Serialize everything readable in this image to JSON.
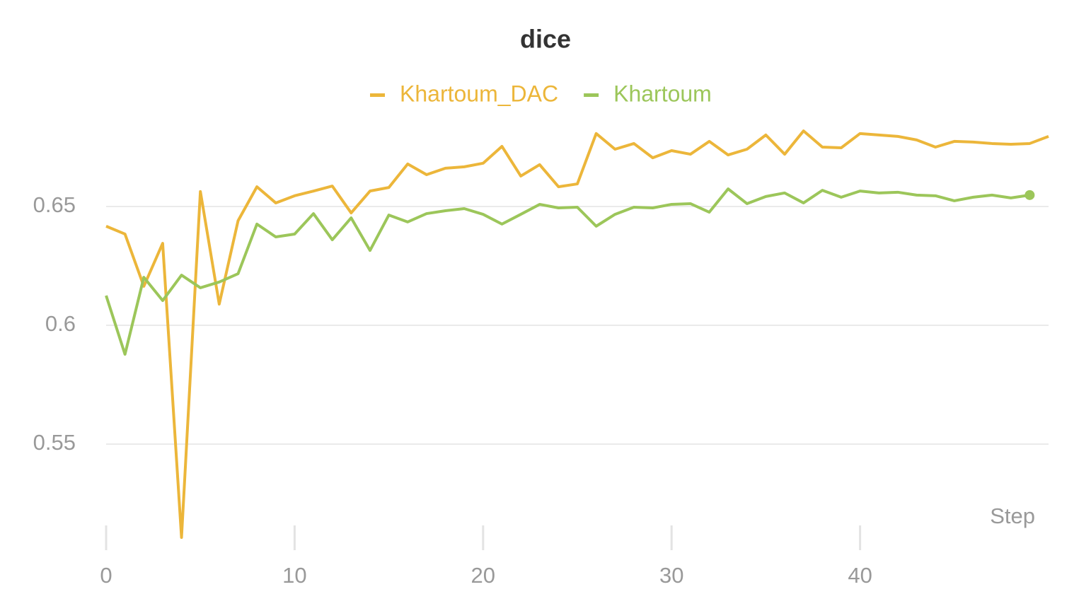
{
  "chart_data": {
    "type": "line",
    "title": "dice",
    "xlabel": "Step",
    "x": [
      0,
      1,
      2,
      3,
      4,
      5,
      6,
      7,
      8,
      9,
      10,
      11,
      12,
      13,
      14,
      15,
      16,
      17,
      18,
      19,
      20,
      21,
      22,
      23,
      24,
      25,
      26,
      27,
      28,
      29,
      30,
      31,
      32,
      33,
      34,
      35,
      36,
      37,
      38,
      39,
      40,
      41,
      42,
      43,
      44,
      45,
      46,
      47,
      48,
      49,
      50
    ],
    "series": [
      {
        "name": "Khartoum_DAC",
        "color": "#ecb63a",
        "values": [
          0.6417,
          0.6384,
          0.6164,
          0.6345,
          0.5107,
          0.6563,
          0.6089,
          0.644,
          0.6583,
          0.6515,
          0.6545,
          0.6565,
          0.6586,
          0.6473,
          0.6565,
          0.658,
          0.6679,
          0.6634,
          0.6661,
          0.6667,
          0.6682,
          0.6753,
          0.6628,
          0.6676,
          0.6583,
          0.6595,
          0.6807,
          0.6741,
          0.6765,
          0.6705,
          0.6735,
          0.672,
          0.6774,
          0.6717,
          0.6741,
          0.6801,
          0.672,
          0.6818,
          0.675,
          0.6747,
          0.6807,
          0.6801,
          0.6795,
          0.678,
          0.675,
          0.6774,
          0.6771,
          0.6765,
          0.6762,
          0.6765,
          0.6795
        ]
      },
      {
        "name": "Khartoum",
        "color": "#9cc65a",
        "values": [
          0.6125,
          0.5878,
          0.6202,
          0.6104,
          0.6211,
          0.6158,
          0.6182,
          0.6217,
          0.6426,
          0.6372,
          0.6384,
          0.647,
          0.636,
          0.6452,
          0.6315,
          0.6464,
          0.6435,
          0.647,
          0.6482,
          0.6491,
          0.6467,
          0.6426,
          0.6467,
          0.6509,
          0.6494,
          0.6497,
          0.6417,
          0.6467,
          0.6497,
          0.6494,
          0.6509,
          0.6512,
          0.6476,
          0.6574,
          0.6512,
          0.6542,
          0.6557,
          0.6515,
          0.6568,
          0.6539,
          0.6565,
          0.6557,
          0.656,
          0.6548,
          0.6545,
          0.6524,
          0.6539,
          0.6548,
          0.6536,
          0.6548,
          null
        ]
      }
    ],
    "xlim": [
      0,
      50
    ],
    "xticks": [
      0,
      10,
      20,
      30,
      40
    ],
    "ylim": [
      0.505,
      0.688
    ],
    "yticks": [
      0.55,
      0.6,
      0.65
    ],
    "grid": true,
    "legend": "top"
  }
}
